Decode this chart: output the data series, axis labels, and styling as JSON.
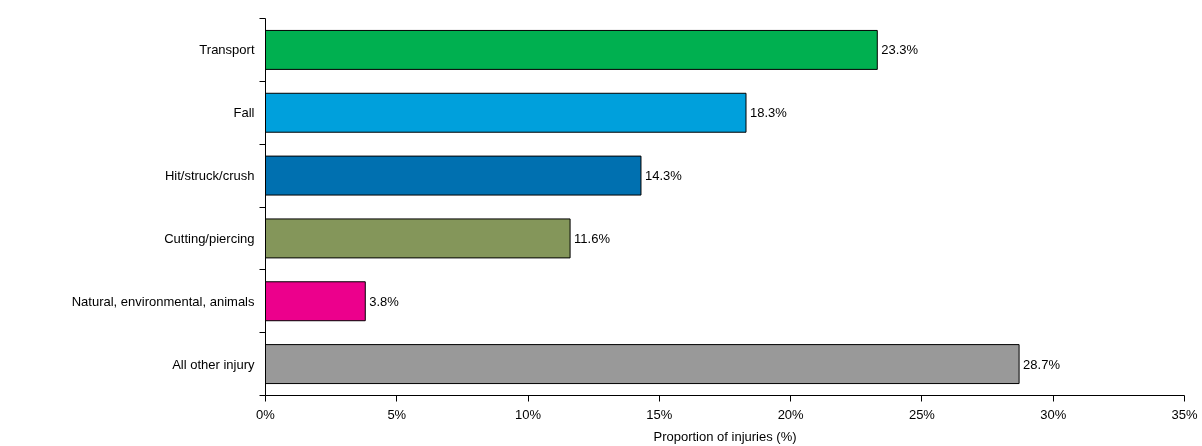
{
  "chart_data": {
    "type": "bar",
    "orientation": "horizontal",
    "xlabel": "Proportion of injuries (%)",
    "categories": [
      "Transport",
      "Fall",
      "Hit/struck/crush",
      "Cutting/piercing",
      "Natural, environmental, animals",
      "All other injury"
    ],
    "values": [
      23.3,
      18.3,
      14.3,
      11.6,
      3.8,
      28.7
    ],
    "colors": [
      "#00b050",
      "#00a0dc",
      "#0070b0",
      "#84965a",
      "#ec008c",
      "#999999"
    ],
    "value_labels": [
      "23.3%",
      "18.3%",
      "14.3%",
      "11.6%",
      "3.8%",
      "28.7%"
    ],
    "xlim": [
      0,
      35
    ],
    "xticks": [
      {
        "value": 0,
        "label": "0%"
      },
      {
        "value": 5,
        "label": "5%"
      },
      {
        "value": 10,
        "label": "10%"
      },
      {
        "value": 15,
        "label": "15%"
      },
      {
        "value": 20,
        "label": "20%"
      },
      {
        "value": 25,
        "label": "25%"
      },
      {
        "value": 30,
        "label": "30%"
      },
      {
        "value": 35,
        "label": "35%"
      }
    ],
    "grid": false
  }
}
